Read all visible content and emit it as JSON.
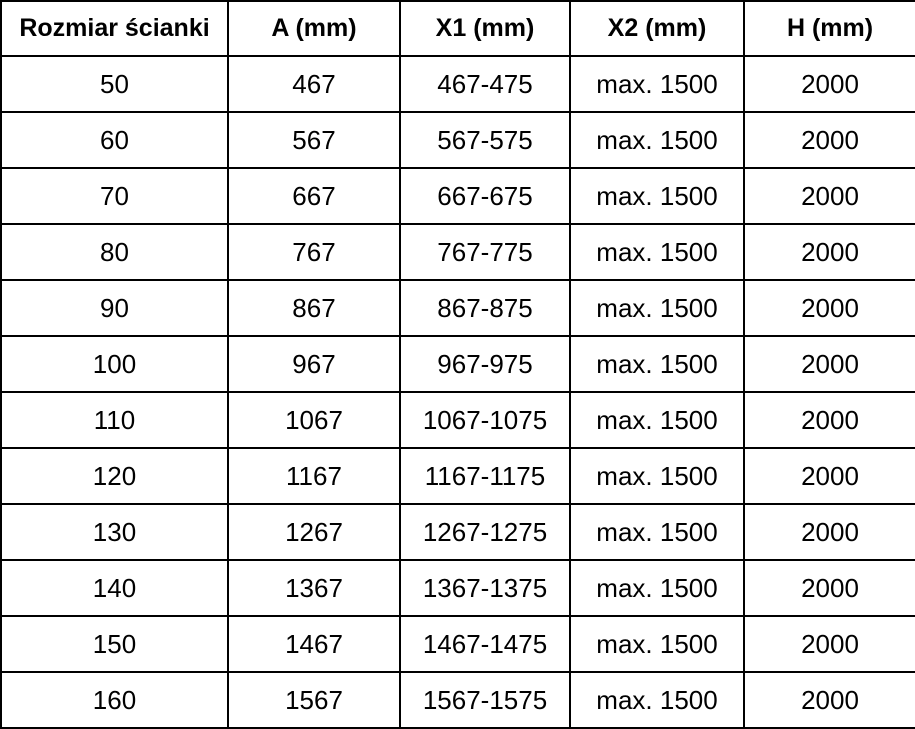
{
  "table": {
    "headers": [
      "Rozmiar ścianki",
      "A (mm)",
      "X1 (mm)",
      "X2 (mm)",
      "H (mm)"
    ],
    "rows": [
      {
        "cells": [
          "50",
          "467",
          "467-475",
          "max. 1500",
          "2000"
        ]
      },
      {
        "cells": [
          "60",
          "567",
          "567-575",
          "max. 1500",
          "2000"
        ]
      },
      {
        "cells": [
          "70",
          "667",
          "667-675",
          "max. 1500",
          "2000"
        ]
      },
      {
        "cells": [
          "80",
          "767",
          "767-775",
          "max. 1500",
          "2000"
        ]
      },
      {
        "cells": [
          "90",
          "867",
          "867-875",
          "max. 1500",
          "2000"
        ]
      },
      {
        "cells": [
          "100",
          "967",
          "967-975",
          "max. 1500",
          "2000"
        ]
      },
      {
        "cells": [
          "110",
          "1067",
          "1067-1075",
          "max. 1500",
          "2000"
        ]
      },
      {
        "cells": [
          "120",
          "1167",
          "1167-1175",
          "max. 1500",
          "2000"
        ]
      },
      {
        "cells": [
          "130",
          "1267",
          "1267-1275",
          "max. 1500",
          "2000"
        ]
      },
      {
        "cells": [
          "140",
          "1367",
          "1367-1375",
          "max. 1500",
          "2000"
        ]
      },
      {
        "cells": [
          "150",
          "1467",
          "1467-1475",
          "max. 1500",
          "2000"
        ]
      },
      {
        "cells": [
          "160",
          "1567",
          "1567-1575",
          "max. 1500",
          "2000"
        ]
      }
    ]
  },
  "colors": {
    "border": "#000000",
    "text": "#000000",
    "background": "#ffffff"
  },
  "chart_data": {
    "type": "table",
    "title": "",
    "columns": [
      "Rozmiar ścianki",
      "A (mm)",
      "X1 (mm)",
      "X2 (mm)",
      "H (mm)"
    ],
    "rows": [
      [
        "50",
        "467",
        "467-475",
        "max. 1500",
        "2000"
      ],
      [
        "60",
        "567",
        "567-575",
        "max. 1500",
        "2000"
      ],
      [
        "70",
        "667",
        "667-675",
        "max. 1500",
        "2000"
      ],
      [
        "80",
        "767",
        "767-775",
        "max. 1500",
        "2000"
      ],
      [
        "90",
        "867",
        "867-875",
        "max. 1500",
        "2000"
      ],
      [
        "100",
        "967",
        "967-975",
        "max. 1500",
        "2000"
      ],
      [
        "110",
        "1067",
        "1067-1075",
        "max. 1500",
        "2000"
      ],
      [
        "120",
        "1167",
        "1167-1175",
        "max. 1500",
        "2000"
      ],
      [
        "130",
        "1267",
        "1267-1275",
        "max. 1500",
        "2000"
      ],
      [
        "140",
        "1367",
        "1367-1375",
        "max. 1500",
        "2000"
      ],
      [
        "150",
        "1467",
        "1467-1475",
        "max. 1500",
        "2000"
      ],
      [
        "160",
        "1567",
        "1567-1575",
        "max. 1500",
        "2000"
      ]
    ]
  }
}
